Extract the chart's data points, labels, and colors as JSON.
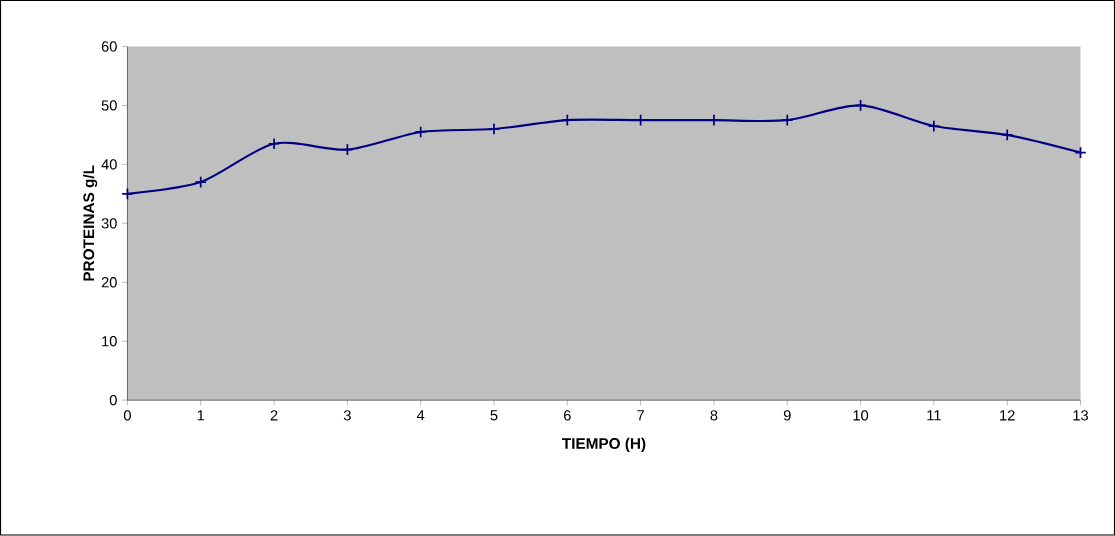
{
  "chart_data": {
    "type": "line",
    "xlabel": "TIEMPO (H)",
    "ylabel": "PROTEINAS g/L",
    "x": [
      0,
      1,
      2,
      3,
      4,
      5,
      6,
      7,
      8,
      9,
      10,
      11,
      12,
      13
    ],
    "values": [
      35,
      37,
      43.5,
      42.5,
      45.5,
      46,
      47.5,
      47.5,
      47.5,
      47.5,
      50,
      46.5,
      45,
      42
    ],
    "color": "#000080",
    "marker": "cross",
    "line_style": "solid",
    "grid": false,
    "xlim": [
      0,
      13
    ],
    "xticks": [
      0,
      1,
      2,
      3,
      4,
      5,
      6,
      7,
      8,
      9,
      10,
      11,
      12,
      13
    ],
    "ylim": [
      0,
      60
    ],
    "yticks": [
      0,
      10,
      20,
      30,
      40,
      50,
      60
    ]
  }
}
